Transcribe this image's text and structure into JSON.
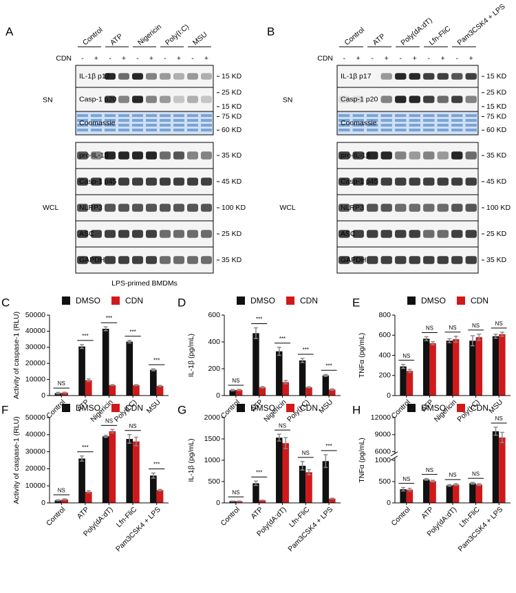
{
  "blot_panels": [
    {
      "label": "A",
      "groups": [
        "Control",
        "ATP",
        "Nigericin",
        "Poly(I:C)",
        "MSU"
      ],
      "cdn_label": "CDN",
      "cdn_signs": [
        "-",
        "+",
        "-",
        "+",
        "-",
        "+",
        "-",
        "+",
        "-",
        "+"
      ],
      "sections": [
        {
          "name": "SN",
          "rows": [
            {
              "name": "IL-1β p17",
              "markers": [
                "15 KD"
              ]
            },
            {
              "name": "Casp-1 p20",
              "markers": [
                "25 KD",
                "15 KD"
              ]
            },
            {
              "name": "Coomassie",
              "markers": [
                "75 KD",
                "60 KD"
              ]
            }
          ]
        },
        {
          "name": "WCL",
          "rows": [
            {
              "name": "pro-IL-1β",
              "markers": [
                "35 KD"
              ]
            },
            {
              "name": "Casp-1 p45",
              "markers": [
                "45 KD"
              ]
            },
            {
              "name": "NLRP3",
              "markers": [
                "100 KD"
              ]
            },
            {
              "name": "ASC",
              "markers": [
                "25 KD"
              ]
            },
            {
              "name": "GAPDH",
              "markers": [
                "35 KD"
              ]
            }
          ]
        }
      ],
      "caption": "LPS-primed BMDMs"
    },
    {
      "label": "B",
      "groups": [
        "Control",
        "ATP",
        "Poly(dA:dT)",
        "Lfn-FliC",
        "Pam3CSK4 + LPS"
      ],
      "cdn_label": "CDN",
      "cdn_signs": [
        "-",
        "+",
        "-",
        "+",
        "-",
        "+",
        "-",
        "+",
        "-",
        "+"
      ],
      "sections": [
        {
          "name": "SN",
          "rows": [
            {
              "name": "IL-1β p17",
              "markers": [
                "15 KD"
              ]
            },
            {
              "name": "Casp-1 p20",
              "markers": [
                "25 KD",
                "15 KD"
              ]
            },
            {
              "name": "Coomassie",
              "markers": [
                "75 KD",
                "60 KD"
              ]
            }
          ]
        },
        {
          "name": "WCL",
          "rows": [
            {
              "name": "pro-IL-1β",
              "markers": [
                "35 KD"
              ]
            },
            {
              "name": "Casp-1 p45",
              "markers": [
                "45 KD"
              ]
            },
            {
              "name": "NLRP3",
              "markers": [
                "100 KD"
              ]
            },
            {
              "name": "ASC",
              "markers": [
                "25 KD"
              ]
            },
            {
              "name": "GAPDH",
              "markers": [
                "35 KD"
              ]
            }
          ]
        }
      ]
    }
  ],
  "chart_data": [
    {
      "type": "bar",
      "panel_label": "C",
      "y_label": "Activity of caspase-1 (RLU)",
      "categories": [
        "Control",
        "ATP",
        "Nigericin",
        "Poly(I:C)",
        "MSU"
      ],
      "series": [
        {
          "name": "DMSO",
          "color": "#111111",
          "values": [
            1500,
            30500,
            41500,
            33500,
            16000
          ],
          "errors": [
            500,
            1200,
            1200,
            800,
            600
          ]
        },
        {
          "name": "CDN",
          "color": "#d0191b",
          "values": [
            1800,
            9500,
            6500,
            6500,
            6000
          ],
          "errors": [
            300,
            800,
            300,
            300,
            300
          ]
        }
      ],
      "significance": [
        "NS",
        "***",
        "***",
        "***",
        "***"
      ],
      "ylim": [
        0,
        50000
      ],
      "yticks": [
        0,
        10000,
        20000,
        30000,
        40000,
        50000
      ]
    },
    {
      "type": "bar",
      "panel_label": "D",
      "y_label": "IL-1β (pg/mL)",
      "categories": [
        "Control",
        "ATP",
        "Nigericin",
        "Poly(I:C)",
        "MSU"
      ],
      "series": [
        {
          "name": "DMSO",
          "color": "#111111",
          "values": [
            40,
            465,
            330,
            262,
            150
          ],
          "errors": [
            5,
            40,
            30,
            15,
            8
          ]
        },
        {
          "name": "CDN",
          "color": "#d0191b",
          "values": [
            42,
            62,
            100,
            62,
            45
          ],
          "errors": [
            4,
            5,
            12,
            4,
            5
          ]
        }
      ],
      "significance": [
        "NS",
        "***",
        "***",
        "***",
        "***"
      ],
      "ylim": [
        0,
        600
      ],
      "yticks": [
        0,
        200,
        400,
        600
      ]
    },
    {
      "type": "bar",
      "panel_label": "E",
      "y_label": "TNFα (pg/mL)",
      "categories": [
        "Control",
        "ATP",
        "Nigericin",
        "Poly(I:C)",
        "MSU"
      ],
      "series": [
        {
          "name": "DMSO",
          "color": "#111111",
          "values": [
            290,
            565,
            545,
            545,
            590
          ],
          "errors": [
            20,
            20,
            20,
            50,
            20
          ]
        },
        {
          "name": "CDN",
          "color": "#d0191b",
          "values": [
            245,
            520,
            560,
            580,
            610
          ],
          "errors": [
            15,
            15,
            30,
            30,
            20
          ]
        }
      ],
      "significance": [
        "NS",
        "NS",
        "NS",
        "NS",
        "NS"
      ],
      "ylim": [
        0,
        800
      ],
      "yticks": [
        0,
        200,
        400,
        600,
        800
      ]
    },
    {
      "type": "bar",
      "panel_label": "F",
      "y_label": "Activity of caspase-1 (RLU)",
      "categories": [
        "Control",
        "ATP",
        "Poly(dA:dT)",
        "Lfn-FliC",
        "Pam3CSK4 + LPS"
      ],
      "series": [
        {
          "name": "DMSO",
          "color": "#111111",
          "values": [
            1500,
            26000,
            39000,
            37500,
            16000
          ],
          "errors": [
            300,
            1500,
            600,
            2500,
            1500
          ]
        },
        {
          "name": "CDN",
          "color": "#d0191b",
          "values": [
            2000,
            6500,
            42000,
            36000,
            7500
          ],
          "errors": [
            300,
            600,
            1000,
            2500,
            400
          ]
        }
      ],
      "significance": [
        "NS",
        "***",
        "NS",
        "NS",
        "***"
      ],
      "ylim": [
        0,
        50000
      ],
      "yticks": [
        0,
        10000,
        20000,
        30000,
        40000,
        50000
      ]
    },
    {
      "type": "bar",
      "panel_label": "G",
      "y_label": "IL-1β (pg/mL)",
      "categories": [
        "Control",
        "ATP",
        "Poly(dA:dT)",
        "Lfn-FliC",
        "Pam3CSK4 + LPS"
      ],
      "series": [
        {
          "name": "DMSO",
          "color": "#111111",
          "values": [
            40,
            460,
            1530,
            870,
            980
          ],
          "errors": [
            5,
            50,
            80,
            100,
            150
          ]
        },
        {
          "name": "CDN",
          "color": "#d0191b",
          "values": [
            40,
            60,
            1400,
            720,
            100
          ],
          "errors": [
            5,
            5,
            130,
            60,
            10
          ]
        }
      ],
      "significance": [
        "NS",
        "***",
        "NS",
        "NS",
        "***"
      ],
      "ylim": [
        0,
        2000
      ],
      "yticks": [
        0,
        500,
        1000,
        1500,
        2000
      ]
    },
    {
      "type": "bar",
      "panel_label": "H",
      "y_label": "TNFα (pg/mL)",
      "categories": [
        "Control",
        "ATP",
        "Poly(dA:dT)",
        "Lfn-FliC",
        "Pam3CSK4 + LPS"
      ],
      "series": [
        {
          "name": "DMSO",
          "color": "#111111",
          "values": [
            320,
            550,
            410,
            460,
            9600
          ],
          "errors": [
            40,
            20,
            20,
            20,
            700
          ]
        },
        {
          "name": "CDN",
          "color": "#d0191b",
          "values": [
            310,
            510,
            430,
            430,
            8500
          ],
          "errors": [
            30,
            20,
            20,
            20,
            900
          ]
        }
      ],
      "significance": [
        "NS",
        "NS",
        "NS",
        "NS",
        "NS"
      ],
      "ylim": [
        0,
        12000
      ],
      "axis_break": [
        1000,
        6000
      ],
      "yticks": [
        0,
        500,
        1000,
        6000,
        9000,
        12000
      ]
    }
  ]
}
